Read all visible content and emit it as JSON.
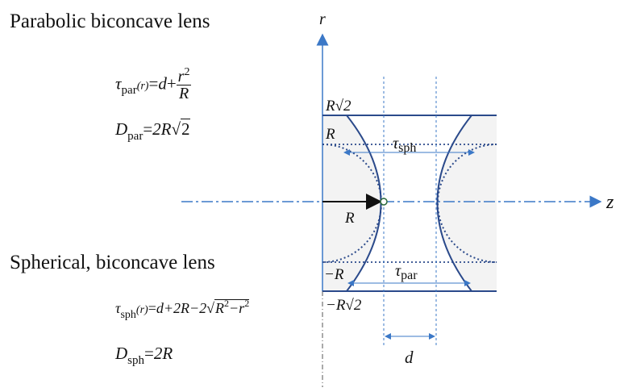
{
  "headings": {
    "parabolic": "Parabolic biconcave lens",
    "spherical": "Spherical, biconcave lens"
  },
  "formulas": {
    "tau_par": {
      "symbol": "τ",
      "sub": "par",
      "arg": "(r)",
      "eq": "=",
      "lhs": "d",
      "plus": "+",
      "num": "r",
      "num_exp": "2",
      "den": "R"
    },
    "D_par": {
      "symbol": "D",
      "sub": "par",
      "eq": "=",
      "body": "2R",
      "sqrt_symbol": "√",
      "sqrt_arg": "2"
    },
    "tau_sph": {
      "symbol": "τ",
      "sub": "sph",
      "arg": "(r)",
      "eq": "=",
      "body": "d+2R−2",
      "sqrt_symbol": "√",
      "sqrt_arg": "R",
      "exp1": "2",
      "minus": "−r",
      "exp2": "2"
    },
    "D_sph": {
      "symbol": "D",
      "sub": "sph",
      "eq": "=",
      "body": "2R"
    }
  },
  "diagram": {
    "axis_r": "r",
    "axis_z": "z",
    "labels": {
      "top_outer": "R√2",
      "top_inner": "R",
      "bottom_inner": "−R",
      "bottom_outer": "−R√2",
      "radius_arrow": "R",
      "gap": "d"
    },
    "tau_sph": {
      "symbol": "τ",
      "sub": "sph"
    },
    "tau_par": {
      "symbol": "τ",
      "sub": "par"
    },
    "colors": {
      "lens_line": "#2b4a8b",
      "axis": "#3b78c7",
      "dotted": "#2b4a8b",
      "fill": "#f3f3f3"
    }
  }
}
